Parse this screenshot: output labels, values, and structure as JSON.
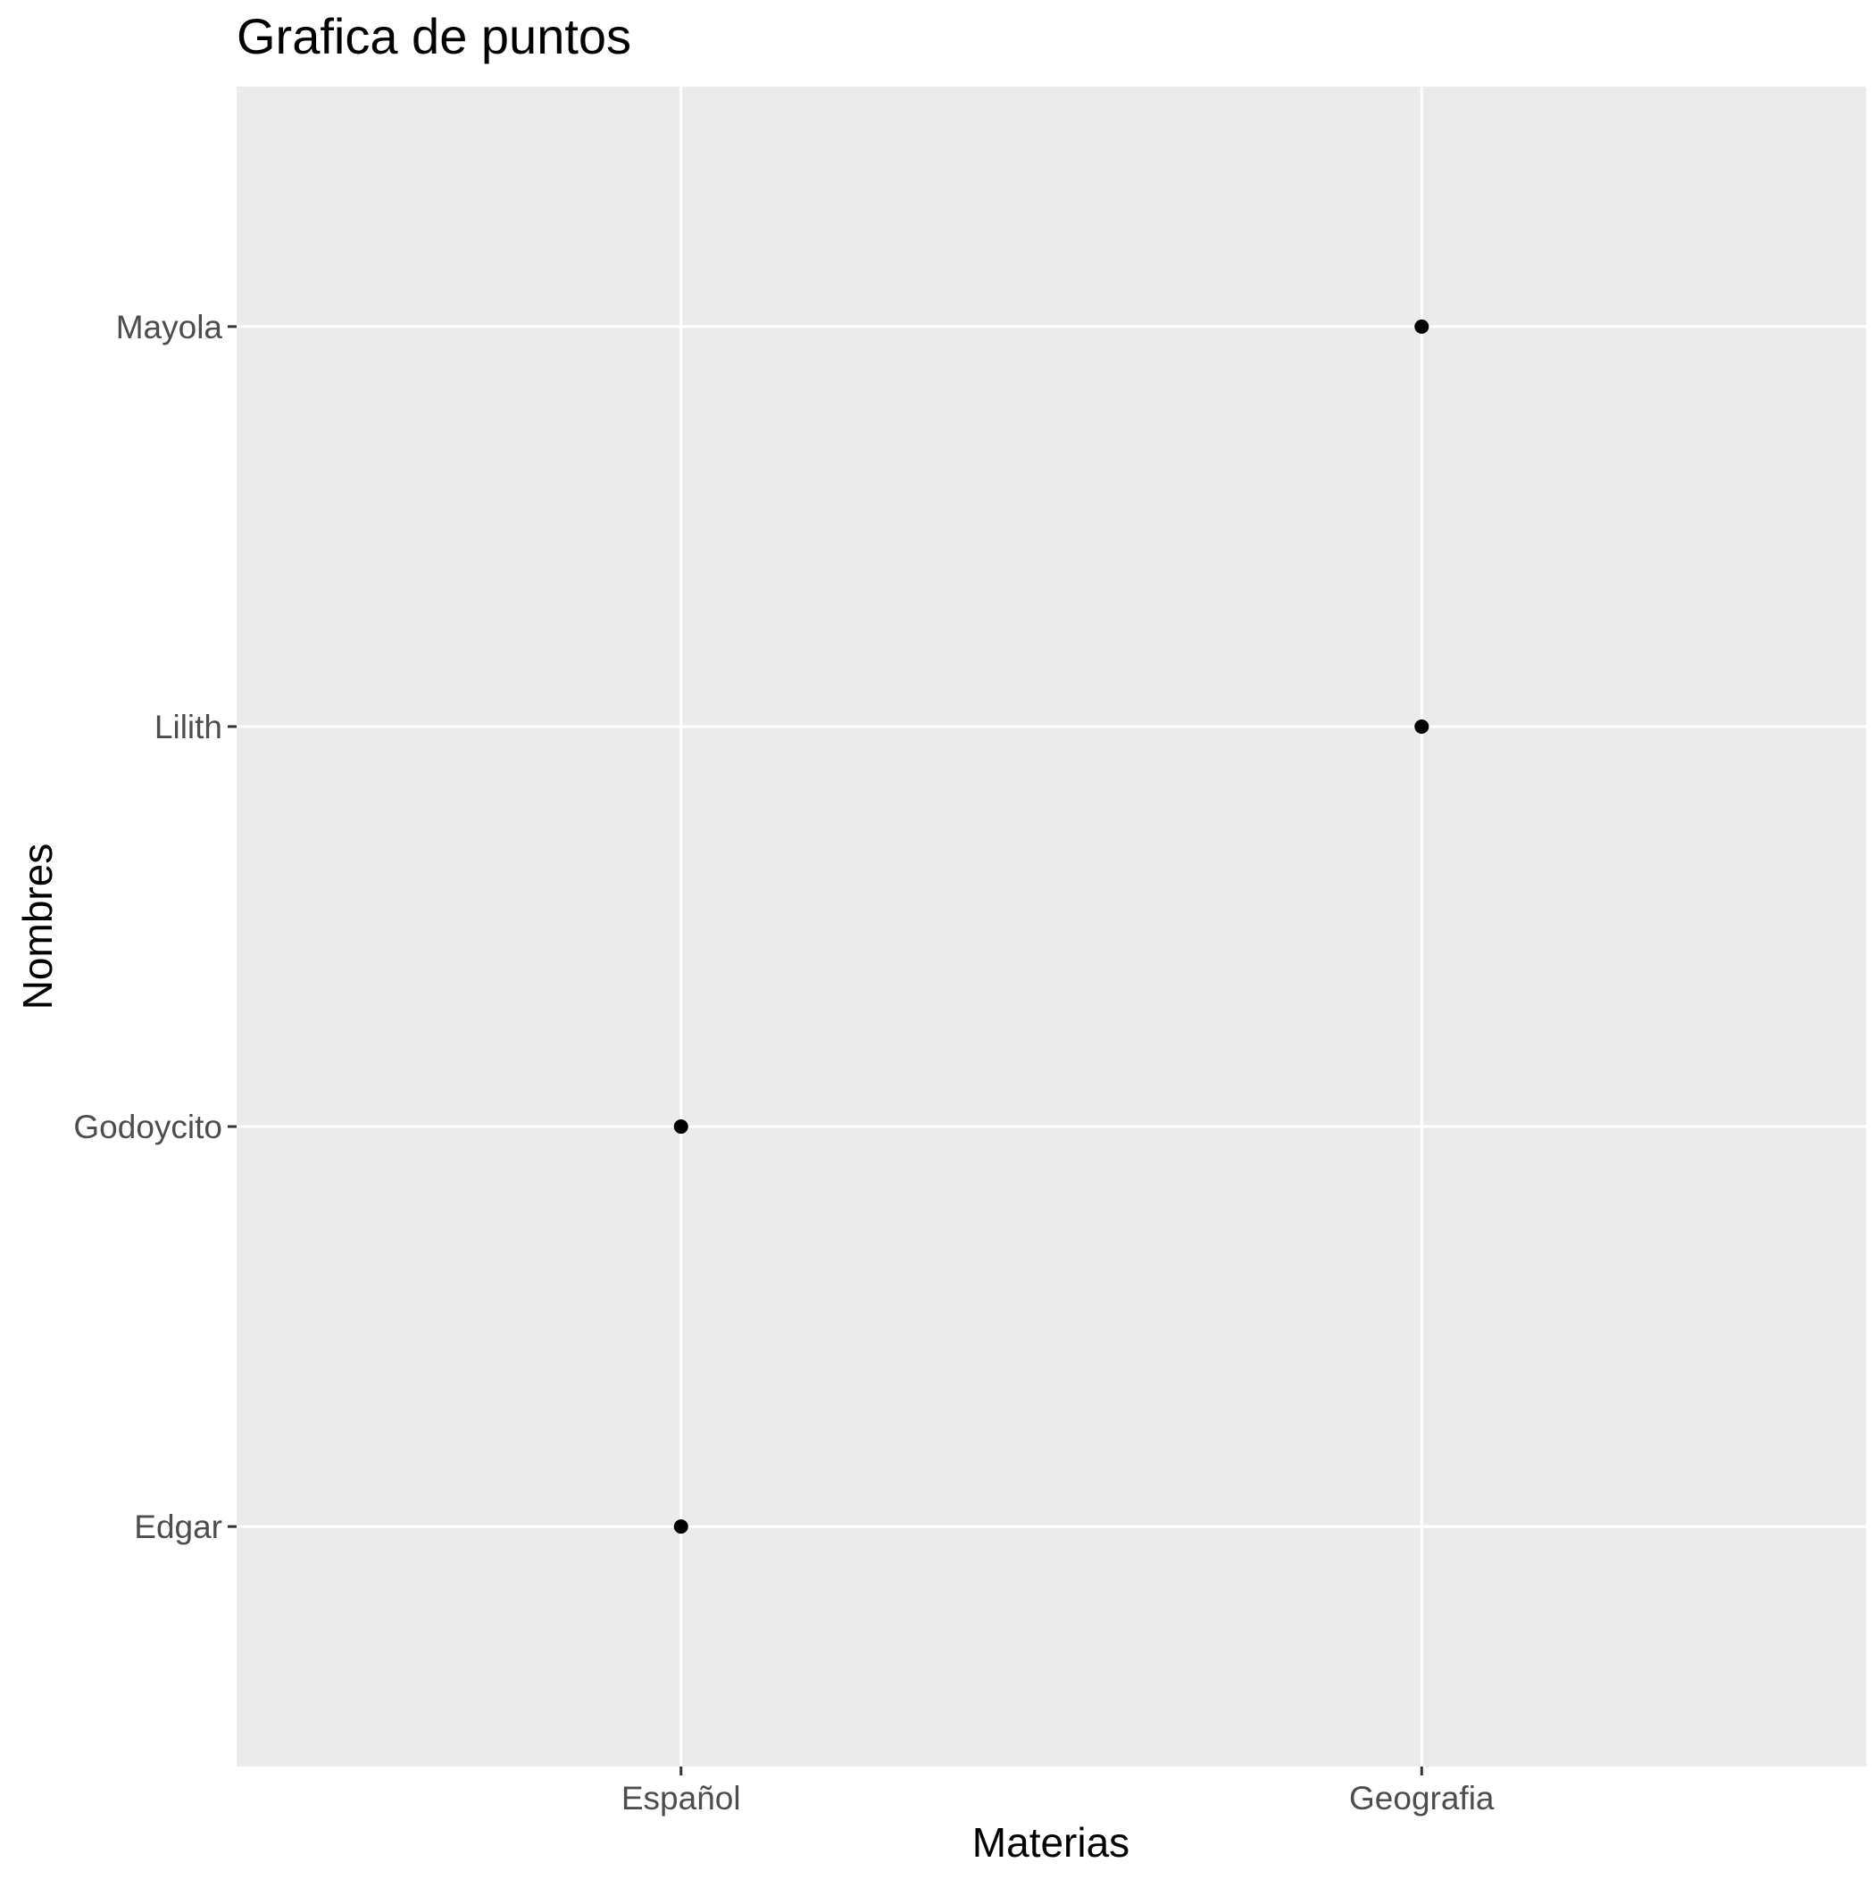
{
  "chart_data": {
    "type": "scatter",
    "title": "Grafica de puntos",
    "xlabel": "Materias",
    "ylabel": "Nombres",
    "x_categories": [
      "Español",
      "Geografia"
    ],
    "y_categories": [
      "Edgar",
      "Godoycito",
      "Lilith",
      "Mayola"
    ],
    "points": [
      {
        "x": "Español",
        "y": "Edgar"
      },
      {
        "x": "Español",
        "y": "Godoycito"
      },
      {
        "x": "Geografia",
        "y": "Lilith"
      },
      {
        "x": "Geografia",
        "y": "Mayola"
      }
    ],
    "grid": true,
    "legend": "none",
    "colors": {
      "panel_background": "#ebebeb",
      "gridline": "#ffffff",
      "point": "#000000",
      "tick_mark": "#333333",
      "tick_label": "#4d4d4d",
      "title": "#000000"
    }
  }
}
